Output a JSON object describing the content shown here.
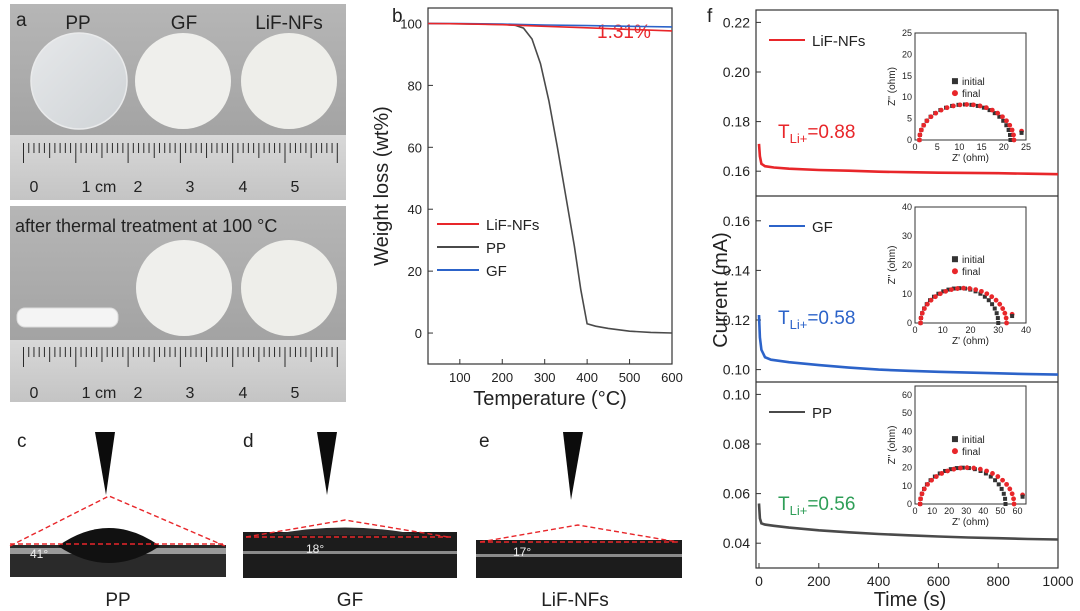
{
  "panels": {
    "a": {
      "letter": "a",
      "samples": [
        "PP",
        "GF",
        "LiF-NFs"
      ],
      "after_caption": "after thermal treatment at 100 °C",
      "ruler_numbers": [
        "0",
        "1 cm",
        "2",
        "3",
        "4",
        "5"
      ]
    },
    "c": {
      "letter": "c",
      "angle": "41°",
      "caption": "PP"
    },
    "d": {
      "letter": "d",
      "angle": "18°",
      "caption": "GF"
    },
    "e": {
      "letter": "e",
      "angle": "17°",
      "caption": "LiF-NFs"
    },
    "b": {
      "letter": "b",
      "annotation": "1.31%"
    },
    "f": {
      "letter": "f"
    }
  },
  "chart_data": [
    {
      "id": "b",
      "type": "line",
      "xlabel": "Temperature (°C)",
      "ylabel": "Weight loss (wt%)",
      "xlim": [
        25,
        600
      ],
      "ylim": [
        -10,
        105
      ],
      "xticks": [
        100,
        200,
        300,
        400,
        500,
        600
      ],
      "yticks": [
        0,
        20,
        40,
        60,
        80,
        100
      ],
      "legend": "center-left",
      "annotations": [
        {
          "text": "1.31%",
          "color": "#e8262a"
        }
      ],
      "series": [
        {
          "name": "LiF-NFs",
          "color": "#e8262a",
          "x": [
            25,
            100,
            200,
            300,
            400,
            500,
            600
          ],
          "y": [
            100,
            99.9,
            99.6,
            99.1,
            98.6,
            98.1,
            97.6
          ]
        },
        {
          "name": "PP",
          "color": "#4a4a4a",
          "x": [
            25,
            100,
            200,
            230,
            250,
            270,
            290,
            310,
            330,
            350,
            370,
            385,
            400,
            420,
            450,
            500,
            550,
            600
          ],
          "y": [
            100,
            99.9,
            99.7,
            99.4,
            98.5,
            95,
            87,
            75,
            60,
            44,
            28,
            14,
            3,
            2.2,
            1.5,
            0.6,
            0.2,
            0
          ]
        },
        {
          "name": "GF",
          "color": "#2c63c9",
          "x": [
            25,
            100,
            200,
            300,
            400,
            500,
            600
          ],
          "y": [
            100,
            100,
            99.8,
            99.5,
            99.3,
            99.1,
            98.9
          ]
        }
      ]
    },
    {
      "id": "f",
      "type": "line",
      "xlabel": "Time (s)",
      "ylabel": "Current (mA)",
      "xlim": [
        -10,
        1000
      ],
      "xticks": [
        0,
        200,
        400,
        600,
        800,
        1000
      ],
      "subplots": [
        {
          "name": "LiF-NFs",
          "color": "#e8262a",
          "ylim": [
            0.15,
            0.225
          ],
          "yticks": [
            0.16,
            0.18,
            0.2,
            0.22
          ],
          "transference_label": "T",
          "transference_sub": "Li+",
          "transference_value": "=0.88",
          "x": [
            0,
            3,
            8,
            20,
            50,
            100,
            200,
            300,
            400,
            500,
            600,
            700,
            800,
            900,
            1000
          ],
          "y": [
            0.171,
            0.166,
            0.163,
            0.162,
            0.1615,
            0.161,
            0.1605,
            0.1602,
            0.1598,
            0.1596,
            0.1594,
            0.1593,
            0.1592,
            0.159,
            0.1588
          ]
        },
        {
          "name": "GF",
          "color": "#2c63c9",
          "ylim": [
            0.095,
            0.17
          ],
          "yticks": [
            0.1,
            0.12,
            0.14,
            0.16
          ],
          "transference_label": "T",
          "transference_sub": "Li+",
          "transference_value": "=0.58",
          "x": [
            0,
            3,
            8,
            20,
            40,
            70,
            100,
            200,
            300,
            400,
            500,
            600,
            700,
            800,
            900,
            1000
          ],
          "y": [
            0.122,
            0.113,
            0.108,
            0.105,
            0.104,
            0.1035,
            0.103,
            0.1018,
            0.1008,
            0.1,
            0.0995,
            0.0991,
            0.0988,
            0.0985,
            0.0982,
            0.098
          ]
        },
        {
          "name": "PP",
          "color": "#4a4a4a",
          "ylim": [
            0.03,
            0.105
          ],
          "yticks": [
            0.04,
            0.06,
            0.08,
            0.1
          ],
          "transference_label": "T",
          "transference_sub": "Li+",
          "transference_value": "=0.56",
          "x": [
            0,
            3,
            8,
            20,
            50,
            100,
            200,
            300,
            400,
            500,
            600,
            700,
            800,
            900,
            1000
          ],
          "y": [
            0.056,
            0.05,
            0.048,
            0.0475,
            0.047,
            0.0463,
            0.0452,
            0.0444,
            0.0437,
            0.0432,
            0.0427,
            0.0423,
            0.042,
            0.0417,
            0.0415
          ]
        }
      ],
      "insets": [
        {
          "xlabel": "Z' (ohm)",
          "ylabel": "Z'' (ohm)",
          "xlim": [
            0,
            25
          ],
          "ylim": [
            0,
            25
          ],
          "xticks": [
            0,
            5,
            10,
            15,
            20,
            25
          ],
          "yticks": [
            0,
            5,
            10,
            15,
            20,
            25
          ],
          "legend": [
            "initial",
            "final"
          ],
          "arc_start": 1,
          "arc_end": 21.5,
          "arc_height": 8.3,
          "final_end": 22.3,
          "tail_x": 24
        },
        {
          "xlabel": "Z' (ohm)",
          "ylabel": "Z'' (ohm)",
          "xlim": [
            0,
            40
          ],
          "ylim": [
            0,
            40
          ],
          "xticks": [
            0,
            10,
            20,
            30,
            40
          ],
          "yticks": [
            0,
            10,
            20,
            30,
            40
          ],
          "legend": [
            "initial",
            "final"
          ],
          "arc_start": 2,
          "arc_end": 30,
          "arc_height": 12,
          "final_end": 33,
          "tail_x": 35
        },
        {
          "xlabel": "Z' (ohm)",
          "ylabel": "Z'' (ohm)",
          "xlim": [
            0,
            65
          ],
          "ylim": [
            0,
            65
          ],
          "xticks": [
            0,
            10,
            20,
            30,
            40,
            50,
            60
          ],
          "yticks": [
            0,
            10,
            20,
            30,
            40,
            50,
            60
          ],
          "legend": [
            "initial",
            "final"
          ],
          "arc_start": 3,
          "arc_end": 53,
          "arc_height": 20,
          "final_end": 58,
          "tail_x": 63
        }
      ]
    }
  ]
}
